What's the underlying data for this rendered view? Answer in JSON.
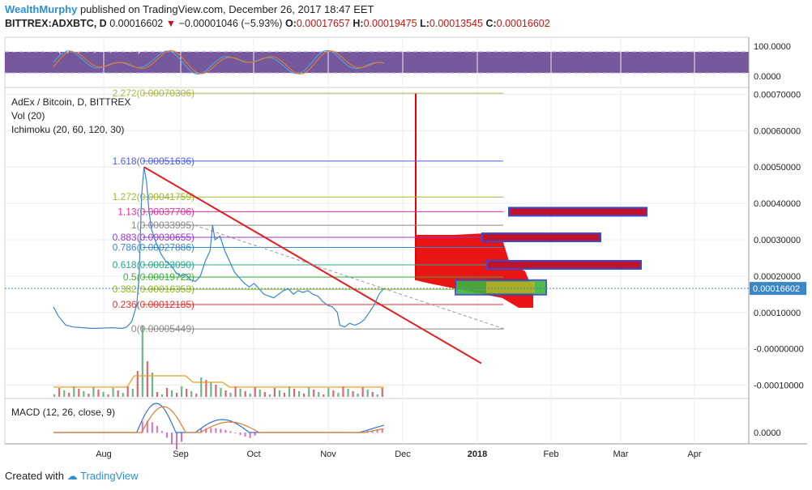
{
  "header": {
    "author": "WealthMurphy",
    "published_text": " published on TradingView.com, December 26, 2017 18:47 EET"
  },
  "symbol_line": {
    "symbol": "BITTREX:ADXBTC, D",
    "last": "0.00016602",
    "change": "−0.00001046 (−5.93%)",
    "o_label": "O:",
    "o": "0.00017657",
    "h_label": "H:",
    "h": "0.00019475",
    "l_label": "L:",
    "l": "0.00013545",
    "c_label": "C:",
    "c": "0.00016602"
  },
  "footer": {
    "created_with": "Created with",
    "brand": "TradingView"
  },
  "colors": {
    "price_line": "#3a86c8",
    "trendline": "#e41e1e",
    "cloud": "#e80000",
    "stoch_bg": "#4b2a7a",
    "green_box": "#3cb43c"
  },
  "chart_data": {
    "type": "line",
    "title": "AdEx / Bitcoin, D, BITTREX",
    "indicators": [
      "Vol (20)",
      "Ichimoku (20, 60, 120, 30)"
    ],
    "x_ticks": [
      "Aug",
      "Sep",
      "Oct",
      "Nov",
      "Dec",
      "2018",
      "Feb",
      "Mar",
      "Apr"
    ],
    "y_ticks": [
      "0.00070000",
      "0.00060000",
      "0.00050000",
      "0.00040000",
      "0.00030000",
      "0.00020000",
      "0.00010000",
      "-0.00000000",
      "-0.00010000"
    ],
    "y_values": [
      0.0007,
      0.0006,
      0.0005,
      0.0004,
      0.0003,
      0.0002,
      0.0001,
      0.0,
      -0.0001
    ],
    "ylim": [
      -0.00011,
      0.00071
    ],
    "current_price_label": "0.00016602",
    "current_price": 0.00016602,
    "fib_levels": [
      {
        "label": "2.272(0.00070306)",
        "value": 0.00070306,
        "color": "#aab84a"
      },
      {
        "label": "1.618(0.00051636)",
        "value": 0.00051636,
        "color": "#4e5ee0"
      },
      {
        "label": "1.272(0.00041759)",
        "value": 0.00041759,
        "color": "#a0b832"
      },
      {
        "label": "1.13(0.00037706)",
        "value": 0.00037706,
        "color": "#e0309a"
      },
      {
        "label": "1(0.00033995)",
        "value": 0.00033995,
        "color": "#888888"
      },
      {
        "label": "0.883(0.00030655)",
        "value": 0.00030655,
        "color": "#9a38c8"
      },
      {
        "label": "0.786(0.00027886)",
        "value": 0.00027886,
        "color": "#3a8ac8"
      },
      {
        "label": "0.618(0.00023090)",
        "value": 0.0002309,
        "color": "#28a888"
      },
      {
        "label": "0.5(0.00019722)",
        "value": 0.00019722,
        "color": "#38b038"
      },
      {
        "label": "0.382(0.00016353)",
        "value": 0.00016353,
        "color": "#98b818"
      },
      {
        "label": "0.236(0.00012185)",
        "value": 0.00012185,
        "color": "#e03030"
      },
      {
        "label": "0(0.00005449)",
        "value": 5.449e-05,
        "color": "#888888"
      }
    ],
    "price_series": [
      [
        0,
        0.000115
      ],
      [
        2,
        9e-05
      ],
      [
        5,
        6.5e-05
      ],
      [
        8,
        6e-05
      ],
      [
        12,
        5.8e-05
      ],
      [
        16,
        5.6e-05
      ],
      [
        20,
        5.7e-05
      ],
      [
        24,
        5.8e-05
      ],
      [
        28,
        5.6e-05
      ],
      [
        30,
        6e-05
      ],
      [
        32,
        7.5e-05
      ],
      [
        34,
        0.00012
      ],
      [
        35,
        0.0002
      ],
      [
        36,
        0.00042
      ],
      [
        37,
        0.0005
      ],
      [
        38,
        0.00046
      ],
      [
        39,
        0.00038
      ],
      [
        40,
        0.00033
      ],
      [
        42,
        0.00029
      ],
      [
        44,
        0.00026
      ],
      [
        46,
        0.00024
      ],
      [
        48,
        0.00023
      ],
      [
        50,
        0.00021
      ],
      [
        52,
        0.0002
      ],
      [
        54,
        0.000205
      ],
      [
        56,
        0.00019
      ],
      [
        58,
        0.000185
      ],
      [
        60,
        0.0002
      ],
      [
        62,
        0.00024
      ],
      [
        64,
        0.00027
      ],
      [
        65,
        0.00034
      ],
      [
        66,
        0.0003
      ],
      [
        68,
        0.00031
      ],
      [
        70,
        0.00027
      ],
      [
        72,
        0.00024
      ],
      [
        74,
        0.00021
      ],
      [
        76,
        0.000195
      ],
      [
        78,
        0.00018
      ],
      [
        80,
        0.00017
      ],
      [
        82,
        0.00018
      ],
      [
        84,
        0.000165
      ],
      [
        86,
        0.00015
      ],
      [
        88,
        0.000145
      ],
      [
        90,
        0.00014
      ],
      [
        92,
        0.00015
      ],
      [
        94,
        0.00016
      ],
      [
        96,
        0.000165
      ],
      [
        98,
        0.00015
      ],
      [
        100,
        0.00016
      ],
      [
        102,
        0.000155
      ],
      [
        104,
        0.00016
      ],
      [
        106,
        0.00015
      ],
      [
        108,
        0.000145
      ],
      [
        110,
        0.00013
      ],
      [
        112,
        0.00012
      ],
      [
        114,
        0.000115
      ],
      [
        116,
        0.0001
      ],
      [
        117,
        6.5e-05
      ],
      [
        119,
        6e-05
      ],
      [
        121,
        7e-05
      ],
      [
        123,
        6.5e-05
      ],
      [
        125,
        7e-05
      ],
      [
        127,
        8e-05
      ],
      [
        129,
        0.0001
      ],
      [
        131,
        0.00012
      ],
      [
        133,
        0.00015
      ],
      [
        135,
        0.000166
      ]
    ]
  },
  "stoch": {
    "label": "Stoch RSI (3, 3, 14, 14, close)",
    "y_ticks": [
      "100.0000",
      "0.0000"
    ]
  },
  "macd": {
    "label": "MACD (12, 26, close, 9)",
    "y_tick": "0.0000"
  }
}
